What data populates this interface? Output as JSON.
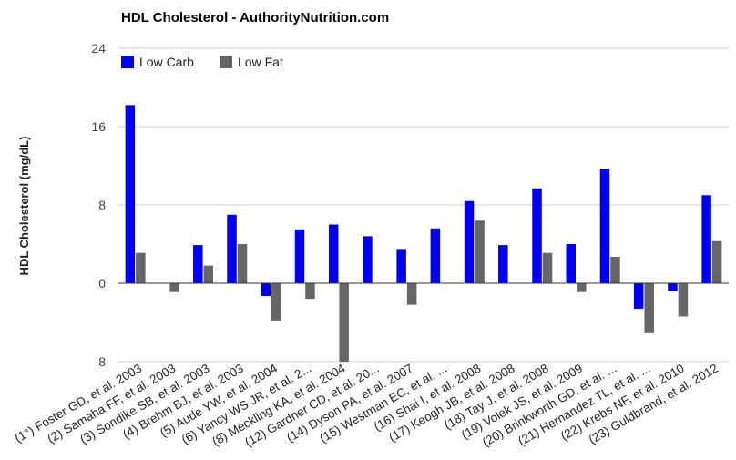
{
  "chart_data": {
    "type": "bar",
    "title": "HDL Cholesterol - AuthorityNutrition.com",
    "xlabel": "",
    "ylabel": "HDL Cholesterol (mg/dL)",
    "ylim": [
      -8,
      24
    ],
    "yticks": [
      "24",
      "16",
      "8",
      "0",
      "-8"
    ],
    "ytick_values": [
      24,
      16,
      8,
      0,
      -8
    ],
    "grid": true,
    "legend_position": "top-left",
    "categories": [
      "(1*) Foster GD, et al. 2003",
      "(2) Samaha FF, et al. 2003",
      "(3) Sondike SB, et al. 2003",
      "(4) Brehm BJ, et al. 2003",
      "(5) Aude YW, et al. 2004",
      "(6) Yancy WS JR, et al. 2...",
      "(8) Meckling KA, et al. 2004",
      "(12) Gardner CD, et al. 20...",
      "(14) Dyson PA, et al. 2007",
      "(15) Westman EC, et al. ...",
      "(16) Shai I, et al. 2008",
      "(17) Keogh JB, et al. 2008",
      "(18) Tay J, et al. 2008",
      "(19) Volek JS, et al. 2009",
      "(20) Brinkworth GD, et al. ...",
      "(21) Hernandez TL, et al. ...",
      "(22) Krebs NF, et al. 2010",
      "(23) Guldbrand, et al. 2012"
    ],
    "series": [
      {
        "name": "Low Carb",
        "color": "#0000ee",
        "values": [
          18.2,
          null,
          3.9,
          7.0,
          -1.3,
          5.5,
          6.0,
          4.8,
          3.5,
          5.6,
          8.4,
          3.9,
          9.7,
          4.0,
          11.7,
          -2.6,
          -0.8,
          9.0
        ]
      },
      {
        "name": "Low Fat",
        "color": "#666666",
        "values": [
          3.1,
          -0.9,
          1.8,
          4.0,
          -3.8,
          -1.6,
          -8.0,
          null,
          -2.2,
          null,
          6.4,
          null,
          3.1,
          -0.9,
          2.7,
          -5.1,
          -3.4,
          4.3
        ]
      }
    ]
  }
}
